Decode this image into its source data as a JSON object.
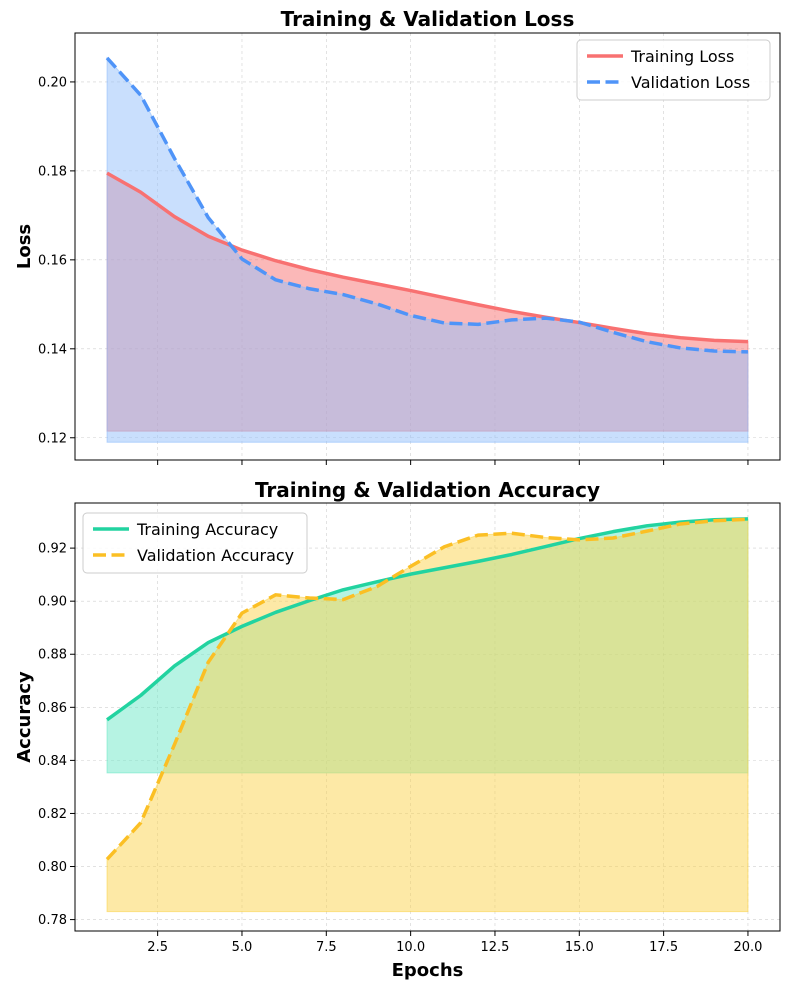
{
  "chart_data": [
    {
      "type": "line",
      "title": "Training & Validation Loss",
      "xlabel": "",
      "ylabel": "Loss",
      "xlim": [
        0.05,
        20.95
      ],
      "ylim": [
        0.115,
        0.211
      ],
      "xticks": [
        2.5,
        5.0,
        7.5,
        10.0,
        12.5,
        15.0,
        17.5,
        20.0
      ],
      "show_xtick_labels": false,
      "yticks": [
        0.12,
        0.14,
        0.16,
        0.18,
        0.2
      ],
      "ytick_labels": [
        "0.12",
        "0.14",
        "0.16",
        "0.18",
        "0.20"
      ],
      "grid": true,
      "legend_position": "upper right",
      "x": [
        1,
        2,
        3,
        4,
        5,
        6,
        7,
        8,
        9,
        10,
        11,
        12,
        13,
        14,
        15,
        16,
        17,
        18,
        19,
        20
      ],
      "series": [
        {
          "name": "Training Loss",
          "style": "solid",
          "color": "#f87171",
          "fill_color": "#f87171",
          "fill_baseline": 0.1215,
          "values": [
            0.1795,
            0.1752,
            0.1697,
            0.1653,
            0.1622,
            0.1598,
            0.1578,
            0.1561,
            0.1546,
            0.1531,
            0.1515,
            0.1499,
            0.1484,
            0.1471,
            0.1459,
            0.1446,
            0.1434,
            0.1425,
            0.1419,
            0.1416
          ]
        },
        {
          "name": "Validation Loss",
          "style": "dashed",
          "color": "#4f94f8",
          "fill_color": "#93c0fb",
          "fill_baseline": 0.119,
          "values": [
            0.2054,
            0.197,
            0.1828,
            0.1695,
            0.1602,
            0.1555,
            0.1535,
            0.1522,
            0.1501,
            0.1475,
            0.1458,
            0.1455,
            0.1465,
            0.1469,
            0.146,
            0.1437,
            0.1416,
            0.1402,
            0.1395,
            0.1393
          ]
        }
      ]
    },
    {
      "type": "line",
      "title": "Training & Validation Accuracy",
      "xlabel": "Epochs",
      "ylabel": "Accuracy",
      "xlim": [
        0.05,
        20.95
      ],
      "ylim": [
        0.7757,
        0.937
      ],
      "xticks": [
        2.5,
        5.0,
        7.5,
        10.0,
        12.5,
        15.0,
        17.5,
        20.0
      ],
      "xtick_labels": [
        "2.5",
        "5.0",
        "7.5",
        "10.0",
        "12.5",
        "15.0",
        "17.5",
        "20.0"
      ],
      "show_xtick_labels": true,
      "yticks": [
        0.78,
        0.8,
        0.82,
        0.84,
        0.86,
        0.88,
        0.9,
        0.92
      ],
      "ytick_labels": [
        "0.78",
        "0.80",
        "0.82",
        "0.84",
        "0.86",
        "0.88",
        "0.90",
        "0.92"
      ],
      "grid": true,
      "legend_position": "upper left",
      "x": [
        1,
        2,
        3,
        4,
        5,
        6,
        7,
        8,
        9,
        10,
        11,
        12,
        13,
        14,
        15,
        16,
        17,
        18,
        19,
        20
      ],
      "series": [
        {
          "name": "Training Accuracy",
          "style": "solid",
          "color": "#22d3a0",
          "fill_color": "#6ee7c8",
          "fill_baseline": 0.8353,
          "values": [
            0.8553,
            0.8645,
            0.8756,
            0.8844,
            0.8905,
            0.8958,
            0.9002,
            0.9043,
            0.9073,
            0.9102,
            0.9126,
            0.915,
            0.9176,
            0.9206,
            0.9236,
            0.9262,
            0.9284,
            0.9298,
            0.9307,
            0.931
          ]
        },
        {
          "name": "Validation Accuracy",
          "style": "dashed",
          "color": "#fbbf24",
          "fill_color": "#fcd34d",
          "fill_baseline": 0.783,
          "values": [
            0.8027,
            0.8165,
            0.846,
            0.877,
            0.8955,
            0.9024,
            0.9012,
            0.9006,
            0.9055,
            0.9131,
            0.9205,
            0.9249,
            0.9256,
            0.924,
            0.9231,
            0.9238,
            0.9264,
            0.9291,
            0.9303,
            0.9309
          ]
        }
      ]
    }
  ]
}
